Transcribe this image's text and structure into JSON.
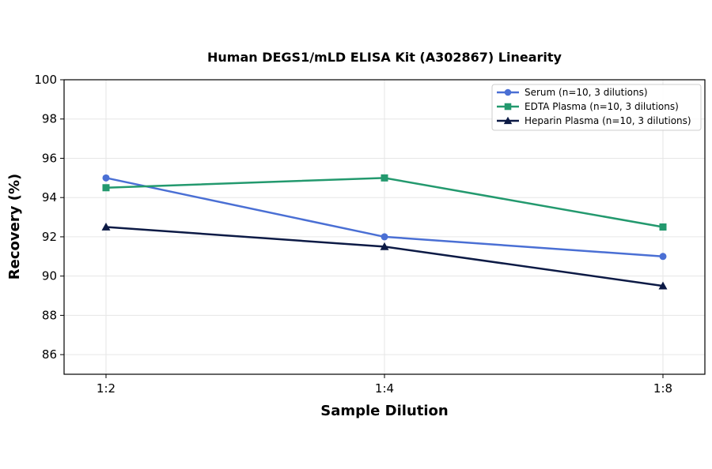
{
  "chart_data": {
    "type": "line",
    "title": "Human DEGS1/mLD ELISA Kit (A302867) Linearity",
    "xlabel": "Sample Dilution",
    "ylabel": "Recovery (%)",
    "categories": [
      "1:2",
      "1:4",
      "1:8"
    ],
    "ylim": [
      85,
      100
    ],
    "yticks": [
      86,
      88,
      90,
      92,
      94,
      96,
      98,
      100
    ],
    "grid": true,
    "legend_position": "top-right",
    "series": [
      {
        "name": "Serum (n=10, 3 dilutions)",
        "values": [
          95,
          92,
          91
        ],
        "color": "#4a6fd4",
        "marker": "circle"
      },
      {
        "name": "EDTA Plasma (n=10, 3 dilutions)",
        "values": [
          94.5,
          95,
          92.5
        ],
        "color": "#23996e",
        "marker": "square"
      },
      {
        "name": "Heparin Plasma (n=10, 3 dilutions)",
        "values": [
          92.5,
          91.5,
          89.5
        ],
        "color": "#0c1a45",
        "marker": "triangle"
      }
    ]
  }
}
